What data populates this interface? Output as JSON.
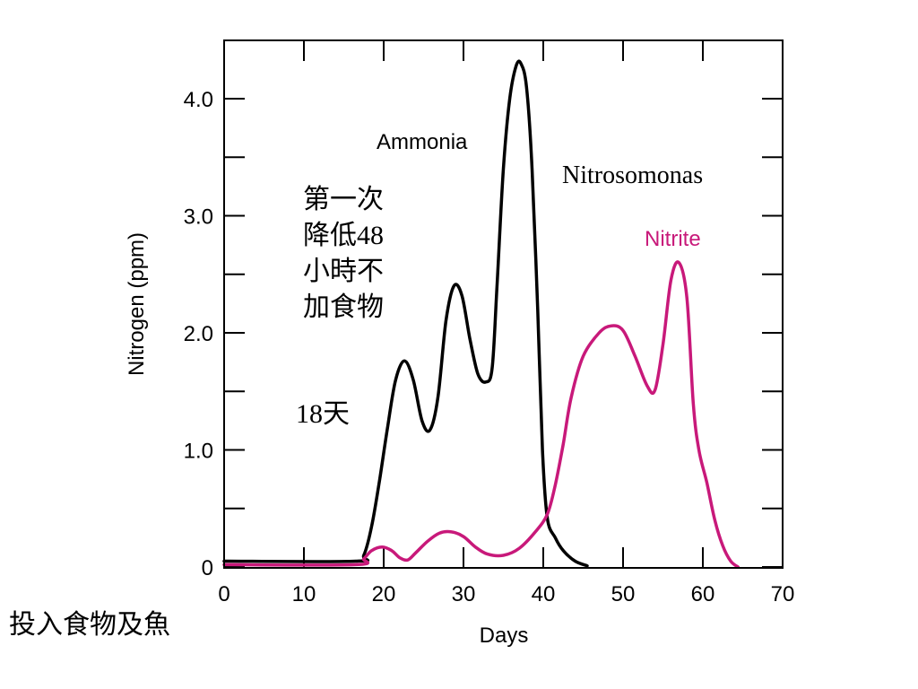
{
  "chart_data": {
    "type": "line",
    "xlabel": "Days",
    "ylabel": "Nitrogen (ppm)",
    "xlim": [
      0,
      70
    ],
    "ylim": [
      0,
      4.4
    ],
    "x_ticks": [
      {
        "value": 0,
        "label": "0"
      },
      {
        "value": 10,
        "label": "10"
      },
      {
        "value": 20,
        "label": "20"
      },
      {
        "value": 30,
        "label": "30"
      },
      {
        "value": 40,
        "label": "40"
      },
      {
        "value": 50,
        "label": "50"
      },
      {
        "value": 60,
        "label": "60"
      },
      {
        "value": 70,
        "label": "70"
      }
    ],
    "y_ticks": [
      {
        "value": 0,
        "label": "0"
      },
      {
        "value": 1,
        "label": "1.0"
      },
      {
        "value": 2,
        "label": "2.0"
      },
      {
        "value": 3,
        "label": "3.0"
      },
      {
        "value": 4,
        "label": "4.0"
      }
    ],
    "y_minor_ticks": [
      0.5,
      1.5,
      2.5,
      3.5
    ],
    "grid": false,
    "series": [
      {
        "name": "Ammonia",
        "color": "#000000",
        "points": [
          [
            0,
            0.05
          ],
          [
            16.5,
            0.05
          ],
          [
            17.5,
            0.1
          ],
          [
            18.5,
            0.35
          ],
          [
            19.5,
            0.75
          ],
          [
            20.5,
            1.2
          ],
          [
            21.5,
            1.6
          ],
          [
            22.6,
            1.76
          ],
          [
            23.7,
            1.6
          ],
          [
            24.8,
            1.25
          ],
          [
            25.8,
            1.17
          ],
          [
            26.8,
            1.45
          ],
          [
            27.8,
            2.1
          ],
          [
            28.8,
            2.4
          ],
          [
            29.8,
            2.32
          ],
          [
            30.8,
            1.95
          ],
          [
            31.8,
            1.65
          ],
          [
            32.8,
            1.58
          ],
          [
            33.6,
            1.7
          ],
          [
            34.2,
            2.4
          ],
          [
            35.0,
            3.4
          ],
          [
            35.8,
            4.0
          ],
          [
            36.6,
            4.28
          ],
          [
            37.2,
            4.3
          ],
          [
            37.9,
            4.1
          ],
          [
            38.6,
            3.4
          ],
          [
            39.3,
            2.2
          ],
          [
            39.9,
            1.0
          ],
          [
            40.5,
            0.42
          ],
          [
            41.5,
            0.25
          ],
          [
            42.5,
            0.14
          ],
          [
            44.0,
            0.05
          ],
          [
            45.5,
            0.01
          ]
        ]
      },
      {
        "name": "Nitrite",
        "color": "#c8197a",
        "points": [
          [
            0,
            0.02
          ],
          [
            16.5,
            0.02
          ],
          [
            17.5,
            0.07
          ],
          [
            18.5,
            0.14
          ],
          [
            19.8,
            0.17
          ],
          [
            21.0,
            0.14
          ],
          [
            22.0,
            0.08
          ],
          [
            23.0,
            0.06
          ],
          [
            24.0,
            0.12
          ],
          [
            25.5,
            0.22
          ],
          [
            27.0,
            0.29
          ],
          [
            28.5,
            0.3
          ],
          [
            30.0,
            0.26
          ],
          [
            31.5,
            0.17
          ],
          [
            33.0,
            0.11
          ],
          [
            35.0,
            0.1
          ],
          [
            37.0,
            0.16
          ],
          [
            39.0,
            0.3
          ],
          [
            40.5,
            0.45
          ],
          [
            41.5,
            0.7
          ],
          [
            42.5,
            1.05
          ],
          [
            43.5,
            1.45
          ],
          [
            45.0,
            1.8
          ],
          [
            47.0,
            2.0
          ],
          [
            48.5,
            2.06
          ],
          [
            50.0,
            2.02
          ],
          [
            51.5,
            1.8
          ],
          [
            53.0,
            1.55
          ],
          [
            54.0,
            1.51
          ],
          [
            55.0,
            1.9
          ],
          [
            56.0,
            2.45
          ],
          [
            57.0,
            2.6
          ],
          [
            58.0,
            2.3
          ],
          [
            58.8,
            1.4
          ],
          [
            59.5,
            1.0
          ],
          [
            60.5,
            0.72
          ],
          [
            61.5,
            0.4
          ],
          [
            62.5,
            0.18
          ],
          [
            63.5,
            0.05
          ],
          [
            64.4,
            0.0
          ]
        ]
      }
    ],
    "annotations": [
      {
        "id": "ammonia",
        "text": "Ammonia"
      },
      {
        "id": "nitrite",
        "text": "Nitrite"
      },
      {
        "id": "nitrosomonas",
        "text": "Nitrosomonas"
      },
      {
        "id": "day18",
        "text": "18天"
      },
      {
        "id": "feed",
        "text": "投入食物及魚"
      }
    ],
    "note_lines": [
      "第一次",
      "降低48",
      "小時不",
      "加食物"
    ]
  }
}
